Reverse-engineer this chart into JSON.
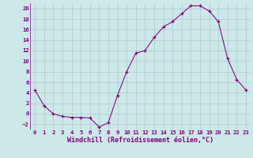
{
  "x": [
    0,
    1,
    2,
    3,
    4,
    5,
    6,
    7,
    8,
    9,
    10,
    11,
    12,
    13,
    14,
    15,
    16,
    17,
    18,
    19,
    20,
    21,
    22,
    23
  ],
  "y": [
    4.5,
    1.5,
    0.0,
    -0.5,
    -0.7,
    -0.7,
    -0.8,
    -2.5,
    -1.7,
    3.5,
    8.0,
    11.5,
    12.0,
    14.5,
    16.5,
    17.5,
    19.0,
    20.5,
    20.5,
    19.5,
    17.5,
    10.5,
    6.5,
    4.5
  ],
  "xlabel": "Windchill (Refroidissement éolien,°C)",
  "xlim": [
    -0.5,
    23.5
  ],
  "ylim": [
    -3,
    21
  ],
  "yticks": [
    -2,
    0,
    2,
    4,
    6,
    8,
    10,
    12,
    14,
    16,
    18,
    20
  ],
  "xticks": [
    0,
    1,
    2,
    3,
    4,
    5,
    6,
    7,
    8,
    9,
    10,
    11,
    12,
    13,
    14,
    15,
    16,
    17,
    18,
    19,
    20,
    21,
    22,
    23
  ],
  "line_color": "#800080",
  "marker": "+",
  "bg_color": "#cce8e8",
  "grid_color": "#aacccc",
  "tick_label_fontsize": 5.2,
  "xlabel_fontsize": 6.0
}
